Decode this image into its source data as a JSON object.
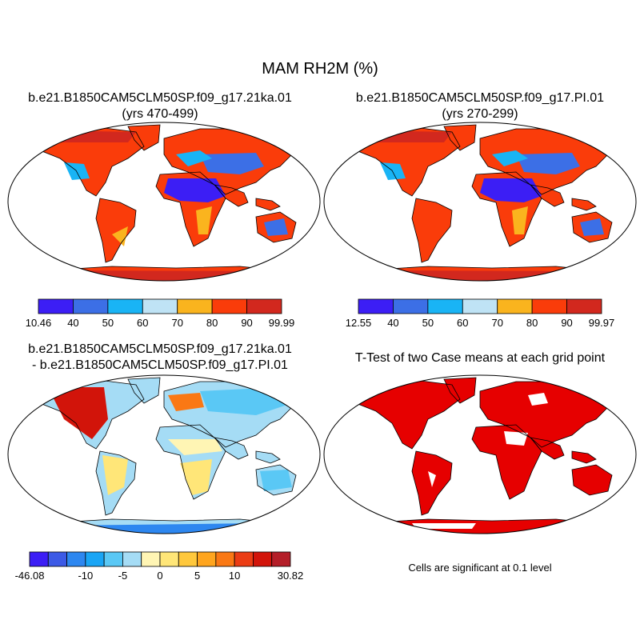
{
  "title": "MAM RH2M (%)",
  "panels": [
    {
      "id": "p1",
      "title_lines": [
        "b.e21.B1850CAM5CLM50SP.f09_g17.21ka.01",
        "(yrs 470-499)"
      ]
    },
    {
      "id": "p2",
      "title_lines": [
        "b.e21.B1850CAM5CLM50SP.f09_g17.PI.01",
        "(yrs 270-299)"
      ]
    },
    {
      "id": "p3",
      "title_lines": [
        "b.e21.B1850CAM5CLM50SP.f09_g17.21ka.01",
        "- b.e21.B1850CAM5CLM50SP.f09_g17.PI.01"
      ]
    },
    {
      "id": "p4",
      "title_lines": [
        "T-Test of two Case means at each grid point"
      ]
    }
  ],
  "colorbars": [
    {
      "id": "cb1",
      "colors": [
        "#3c1ef5",
        "#3c6fe6",
        "#19b4f5",
        "#bfe3f5",
        "#fab41e",
        "#fa3c0a",
        "#d2281e"
      ],
      "labels": [
        "10.46",
        "40",
        "50",
        "60",
        "70",
        "80",
        "90",
        "99.99"
      ]
    },
    {
      "id": "cb2",
      "colors": [
        "#3c1ef5",
        "#3c6fe6",
        "#19b4f5",
        "#bfe3f5",
        "#fab41e",
        "#fa3c0a",
        "#d2281e"
      ],
      "labels": [
        "12.55",
        "40",
        "50",
        "60",
        "70",
        "80",
        "90",
        "99.97"
      ]
    },
    {
      "id": "cb3",
      "colors": [
        "#3c1ef5",
        "#3c5ae6",
        "#2d87f0",
        "#19a5f5",
        "#5ac8f5",
        "#a5dcf5",
        "#fff5b4",
        "#ffe678",
        "#ffc83c",
        "#ffa51e",
        "#fa7814",
        "#eb3c14",
        "#d2140a",
        "#b41e28"
      ],
      "labels": [
        "-46.08",
        "",
        "",
        "-10",
        "",
        "-5",
        "",
        "0",
        "",
        "5",
        "",
        "10",
        "",
        "",
        "30.82"
      ]
    }
  ],
  "significance_note": "Cells are significant at 0.1 level",
  "significance_color": "#e60000"
}
